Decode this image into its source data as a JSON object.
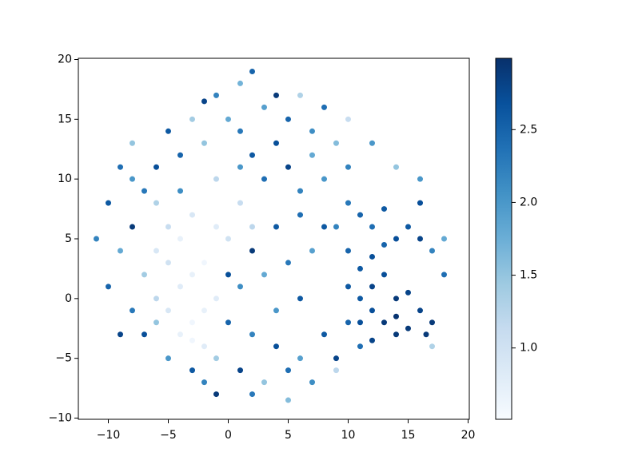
{
  "chart_data": {
    "type": "scatter",
    "colormap": "Blues",
    "xlim": [
      -12.5,
      20.1
    ],
    "ylim": [
      -10.1,
      20.1
    ],
    "clim": [
      0.51,
      2.99
    ],
    "xticks": [
      {
        "value": -10,
        "label": "−10"
      },
      {
        "value": -5,
        "label": "−5"
      },
      0,
      5,
      10,
      15,
      20
    ],
    "yticks": [
      {
        "value": -10,
        "label": "−10"
      },
      {
        "value": -5,
        "label": "−5"
      },
      0,
      5,
      10,
      15,
      20
    ],
    "cticks": [
      {
        "value": 1,
        "label": "1.0"
      },
      {
        "value": 1.5,
        "label": "1.5"
      },
      {
        "value": 2,
        "label": "2.0"
      },
      {
        "value": 2.5,
        "label": "2.5"
      }
    ],
    "x": [
      13,
      14,
      15,
      16,
      17,
      12,
      11,
      12,
      13,
      14,
      15,
      11,
      12,
      13,
      14,
      15,
      16,
      12,
      11,
      13,
      10,
      9,
      10,
      16,
      17,
      14,
      12,
      16.5,
      11,
      10,
      -4,
      -3,
      -2,
      -5,
      -4,
      -3,
      -5,
      -6,
      -4,
      -2,
      -1,
      -2,
      -3,
      -6,
      -7,
      -1,
      0,
      -5,
      -3,
      -6,
      1,
      2,
      2,
      3,
      4,
      5,
      6,
      7,
      8,
      1,
      0,
      -2,
      -4,
      -6,
      -7,
      -8,
      3,
      5,
      7,
      9,
      10,
      -3,
      -5,
      1,
      -1,
      4,
      6,
      8,
      10,
      12,
      -8,
      -9,
      2,
      -2,
      0,
      2,
      4,
      6,
      8,
      1,
      3,
      5,
      7,
      -1,
      2,
      5,
      -3,
      -5,
      -7,
      -8,
      9,
      10,
      -1,
      4,
      6,
      3,
      5,
      7,
      8,
      1,
      -9,
      -10,
      -11,
      -10,
      -9,
      -8,
      18,
      18,
      16,
      14,
      17,
      11,
      9,
      0,
      2,
      4,
      6,
      -1,
      1,
      -4,
      -6,
      -2
    ],
    "values": [
      -2,
      -1.5,
      -2.5,
      -1,
      -2,
      -1,
      0,
      1,
      2,
      0,
      0.5,
      2.5,
      3.5,
      4.5,
      5,
      6,
      5,
      6,
      7,
      7.5,
      8,
      6,
      4,
      8,
      4,
      -3,
      -3.5,
      -3,
      -2,
      1,
      -3,
      -2,
      -4,
      -1,
      1,
      2,
      3,
      4,
      5,
      3,
      0,
      -1,
      -3.5,
      0,
      2,
      6,
      5,
      6,
      7,
      8,
      8,
      6,
      12,
      10,
      13,
      11,
      9,
      12,
      10,
      14,
      15,
      13,
      12,
      11,
      9,
      10,
      16,
      15,
      14,
      13,
      11,
      15,
      14,
      18,
      17,
      17,
      17,
      16,
      15,
      13,
      13,
      11,
      19,
      16.5,
      -2,
      -3,
      -4,
      -5,
      -3,
      -6,
      -7,
      -6,
      -7,
      -8,
      -8,
      -8.5,
      -6,
      -5,
      -3,
      -1,
      -5,
      -2,
      -5,
      -1,
      0,
      2,
      3,
      4,
      6,
      1,
      -3,
      1,
      5,
      8,
      4,
      6,
      2,
      5,
      10,
      11,
      -4,
      -4,
      -6,
      2,
      4,
      6,
      7,
      10,
      11,
      9,
      -2,
      -7
    ],
    "colors": [
      2.9,
      2.95,
      2.9,
      2.8,
      2.9,
      2.7,
      2.6,
      2.8,
      2.7,
      2.9,
      2.8,
      2.6,
      2.7,
      2.5,
      2.7,
      2.6,
      2.8,
      2.4,
      2.5,
      2.6,
      2.3,
      2.2,
      2.5,
      2.7,
      2.2,
      2.9,
      2.8,
      2.9,
      2.7,
      2.6,
      0.7,
      0.6,
      0.8,
      0.9,
      0.8,
      0.7,
      1.0,
      0.9,
      0.7,
      0.6,
      0.8,
      0.7,
      0.6,
      1.2,
      1.4,
      0.8,
      1.0,
      1.1,
      0.9,
      1.3,
      1.1,
      1.2,
      2.6,
      2.4,
      2.7,
      2.8,
      2.2,
      1.8,
      2.0,
      2.3,
      1.8,
      1.5,
      2.5,
      2.7,
      2.3,
      2.0,
      1.9,
      2.5,
      2.1,
      1.6,
      2.2,
      1.4,
      2.6,
      1.7,
      2.2,
      2.9,
      1.3,
      2.4,
      1.1,
      2.0,
      1.5,
      2.4,
      2.5,
      2.8,
      2.5,
      2.2,
      2.7,
      1.9,
      2.6,
      2.8,
      1.5,
      2.4,
      2.1,
      2.9,
      2.3,
      1.6,
      2.6,
      2.0,
      2.7,
      2.3,
      2.8,
      2.5,
      1.4,
      2.0,
      2.6,
      1.8,
      2.3,
      1.9,
      2.6,
      2.1,
      2.8,
      2.5,
      2.2,
      2.6,
      1.8,
      2.9,
      2.4,
      1.8,
      2.0,
      1.5,
      1.3,
      2.4,
      1.2,
      2.7,
      2.9,
      2.6,
      2.4,
      1.2,
      2.0,
      2.1,
      1.5,
      2.2
    ]
  }
}
